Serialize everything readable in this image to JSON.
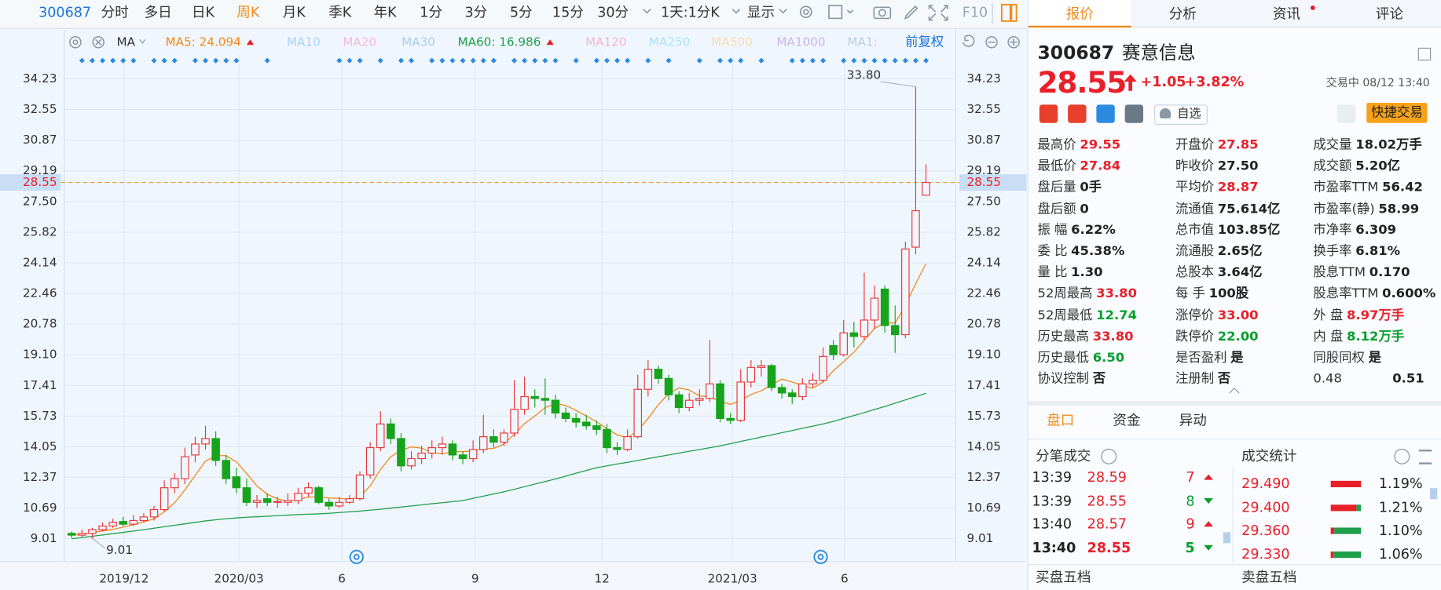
{
  "toolbar": {
    "code": "300687",
    "periods": [
      "分时",
      "多日",
      "日K",
      "周K",
      "月K",
      "季K",
      "年K",
      "1分",
      "3分",
      "5分",
      "15分",
      "30分"
    ],
    "active": "周K",
    "minute_k": "1天:1分K",
    "display": "显示",
    "f10": "F10"
  },
  "ma_legend": {
    "label": "MA",
    "items": [
      {
        "text": "MA5: 24.094",
        "color": "#f0881c"
      },
      {
        "text": "MA10",
        "color": "#a9d3f5"
      },
      {
        "text": "MA20",
        "color": "#f3b8dc"
      },
      {
        "text": "MA30",
        "color": "#a9cdee"
      },
      {
        "text": "MA60: 16.986",
        "color": "#1ea04a"
      },
      {
        "text": "MA120",
        "color": "#f4b4cf"
      },
      {
        "text": "MA250",
        "color": "#a8e4f2"
      },
      {
        "text": "MA500",
        "color": "#f6dcb0"
      },
      {
        "text": "MA1000",
        "color": "#c8b4ec"
      },
      {
        "text": "MA1:",
        "color": "#b8cde2"
      }
    ],
    "adjust": "前复权"
  },
  "chart_data": {
    "type": "candlestick",
    "x_labels": [
      "2019/12",
      "2020/03",
      "6",
      "9",
      "12",
      "2021/03",
      "6"
    ],
    "up_color": "#e8393b",
    "down_color": "#17a31c",
    "candles": [
      [
        9.3,
        9.4,
        9.05,
        9.2
      ],
      [
        9.2,
        9.5,
        9.1,
        9.3
      ],
      [
        9.3,
        9.6,
        9.01,
        9.5
      ],
      [
        9.5,
        9.9,
        9.4,
        9.7
      ],
      [
        9.7,
        10.1,
        9.6,
        9.9
      ],
      [
        9.95,
        10.2,
        9.7,
        9.8
      ],
      [
        9.8,
        10.3,
        9.7,
        10.0
      ],
      [
        10.0,
        10.4,
        9.9,
        10.2
      ],
      [
        10.2,
        10.8,
        10.0,
        10.6
      ],
      [
        10.6,
        12.2,
        10.5,
        11.8
      ],
      [
        11.8,
        12.6,
        11.5,
        12.3
      ],
      [
        12.3,
        14.0,
        12.0,
        13.5
      ],
      [
        13.6,
        14.6,
        13.2,
        14.2
      ],
      [
        14.2,
        15.2,
        13.9,
        14.5
      ],
      [
        14.5,
        14.9,
        13.0,
        13.3
      ],
      [
        13.3,
        13.6,
        12.0,
        12.3
      ],
      [
        12.4,
        12.9,
        11.5,
        11.8
      ],
      [
        11.8,
        12.3,
        10.8,
        11.0
      ],
      [
        11.0,
        11.4,
        10.7,
        11.1
      ],
      [
        11.2,
        11.5,
        10.8,
        11.0
      ],
      [
        11.0,
        11.3,
        10.7,
        11.05
      ],
      [
        11.0,
        11.5,
        10.8,
        11.1
      ],
      [
        11.1,
        11.8,
        10.9,
        11.5
      ],
      [
        11.5,
        12.1,
        11.3,
        11.8
      ],
      [
        11.8,
        11.9,
        10.9,
        11.0
      ],
      [
        11.0,
        11.2,
        10.6,
        10.8
      ],
      [
        10.8,
        11.3,
        10.7,
        11.0
      ],
      [
        11.0,
        11.4,
        10.9,
        11.2
      ],
      [
        11.2,
        12.7,
        11.1,
        12.5
      ],
      [
        12.5,
        14.3,
        12.3,
        14.0
      ],
      [
        14.0,
        16.0,
        13.8,
        15.3
      ],
      [
        15.3,
        15.6,
        14.2,
        14.5
      ],
      [
        14.5,
        14.8,
        12.7,
        13.0
      ],
      [
        13.0,
        13.8,
        12.8,
        13.4
      ],
      [
        13.4,
        14.1,
        13.1,
        13.7
      ],
      [
        13.7,
        14.4,
        13.4,
        14.0
      ],
      [
        14.0,
        14.6,
        13.6,
        14.2
      ],
      [
        14.2,
        14.4,
        13.3,
        13.6
      ],
      [
        13.6,
        13.8,
        13.1,
        13.4
      ],
      [
        13.4,
        14.4,
        13.2,
        13.9
      ],
      [
        13.9,
        15.8,
        13.7,
        14.6
      ],
      [
        14.6,
        15.0,
        14.0,
        14.3
      ],
      [
        14.3,
        15.0,
        14.1,
        14.8
      ],
      [
        14.8,
        17.7,
        14.6,
        16.1
      ],
      [
        16.1,
        17.9,
        15.8,
        16.8
      ],
      [
        16.8,
        17.2,
        16.2,
        16.7
      ],
      [
        16.7,
        17.8,
        15.8,
        16.6
      ],
      [
        16.6,
        16.9,
        15.6,
        15.9
      ],
      [
        15.9,
        16.2,
        15.4,
        15.6
      ],
      [
        15.6,
        15.9,
        15.1,
        15.4
      ],
      [
        15.4,
        15.8,
        15.0,
        15.2
      ],
      [
        15.2,
        15.5,
        14.7,
        15.0
      ],
      [
        15.0,
        15.3,
        13.7,
        14.0
      ],
      [
        14.0,
        14.3,
        13.6,
        13.9
      ],
      [
        13.9,
        15.0,
        13.8,
        14.6
      ],
      [
        14.6,
        18.0,
        14.5,
        17.2
      ],
      [
        17.2,
        18.8,
        16.8,
        18.3
      ],
      [
        18.3,
        18.5,
        17.5,
        17.8
      ],
      [
        17.8,
        18.0,
        16.6,
        16.9
      ],
      [
        16.9,
        17.1,
        15.9,
        16.2
      ],
      [
        16.2,
        17.0,
        16.0,
        16.6
      ],
      [
        16.6,
        17.2,
        16.3,
        16.7
      ],
      [
        16.7,
        19.9,
        16.5,
        17.5
      ],
      [
        17.5,
        17.7,
        15.4,
        15.6
      ],
      [
        15.6,
        15.9,
        15.3,
        15.5
      ],
      [
        15.5,
        18.3,
        15.4,
        17.6
      ],
      [
        17.6,
        18.8,
        17.3,
        18.4
      ],
      [
        18.4,
        18.8,
        17.9,
        18.5
      ],
      [
        18.5,
        18.6,
        17.1,
        17.3
      ],
      [
        17.3,
        17.5,
        16.7,
        17.0
      ],
      [
        17.0,
        17.2,
        16.4,
        16.8
      ],
      [
        16.8,
        17.8,
        16.6,
        17.5
      ],
      [
        17.5,
        18.1,
        17.3,
        17.7
      ],
      [
        17.7,
        19.5,
        17.6,
        19.0
      ],
      [
        19.6,
        19.9,
        18.8,
        19.1
      ],
      [
        19.1,
        21.0,
        19.0,
        20.3
      ],
      [
        20.3,
        20.9,
        19.5,
        20.1
      ],
      [
        20.1,
        23.6,
        19.9,
        21.0
      ],
      [
        21.0,
        22.9,
        20.5,
        22.2
      ],
      [
        22.7,
        22.9,
        20.3,
        20.7
      ],
      [
        20.7,
        21.8,
        19.2,
        20.2
      ],
      [
        20.2,
        25.3,
        20.0,
        24.9
      ],
      [
        25.0,
        33.8,
        24.6,
        27.0
      ],
      [
        27.85,
        29.55,
        27.84,
        28.55
      ]
    ],
    "series": [
      {
        "color": "#f0881c",
        "values": [
          9.2,
          9.25,
          9.33,
          9.43,
          9.52,
          9.64,
          9.78,
          9.92,
          10.1,
          10.48,
          10.98,
          11.68,
          12.48,
          13.26,
          13.56,
          13.56,
          13.22,
          12.58,
          11.9,
          11.44,
          11.19,
          11.05,
          11.15,
          11.29,
          11.29,
          11.24,
          11.22,
          11.16,
          11.3,
          11.9,
          12.8,
          13.5,
          13.86,
          14.04,
          13.98,
          13.72,
          13.66,
          13.78,
          13.78,
          13.82,
          13.94,
          13.96,
          14.2,
          14.74,
          15.32,
          15.74,
          16.2,
          16.42,
          16.32,
          16.04,
          15.74,
          15.42,
          15.04,
          14.7,
          14.54,
          14.94,
          15.6,
          16.36,
          16.96,
          17.28,
          17.16,
          16.84,
          16.78,
          16.52,
          16.38,
          16.58,
          16.92,
          17.12,
          17.46,
          17.76,
          17.6,
          17.42,
          17.26,
          17.6,
          18.22,
          18.72,
          19.24,
          19.9,
          20.54,
          20.86,
          20.84,
          21.8,
          23.0,
          24.094
        ]
      },
      {
        "color": "#1ea04a",
        "values": [
          9.0,
          9.07,
          9.14,
          9.21,
          9.28,
          9.35,
          9.42,
          9.5,
          9.58,
          9.66,
          9.74,
          9.82,
          9.9,
          9.98,
          10.04,
          10.1,
          10.14,
          10.18,
          10.21,
          10.24,
          10.27,
          10.3,
          10.33,
          10.35,
          10.37,
          10.4,
          10.44,
          10.48,
          10.52,
          10.57,
          10.62,
          10.68,
          10.74,
          10.8,
          10.86,
          10.92,
          10.98,
          11.04,
          11.1,
          11.22,
          11.34,
          11.46,
          11.58,
          11.72,
          11.86,
          12.0,
          12.14,
          12.28,
          12.44,
          12.6,
          12.75,
          12.9,
          13.0,
          13.1,
          13.2,
          13.3,
          13.4,
          13.5,
          13.6,
          13.7,
          13.8,
          13.9,
          14.0,
          14.1,
          14.22,
          14.34,
          14.46,
          14.58,
          14.7,
          14.82,
          14.94,
          15.06,
          15.18,
          15.3,
          15.44,
          15.6,
          15.76,
          15.92,
          16.1,
          16.26,
          16.44,
          16.62,
          16.8,
          16.986
        ]
      }
    ],
    "ylim": [
      8.355,
      35.64
    ],
    "yticks": [
      9.01,
      10.69,
      12.37,
      14.05,
      15.73,
      17.41,
      {
        "value": 19.1,
        "label": "19.10"
      },
      20.78,
      22.46,
      24.14,
      25.82,
      {
        "value": 27.5,
        "label": "27.50"
      },
      29.19,
      30.87,
      32.55,
      34.23
    ],
    "last_price": 28.55,
    "high_label": {
      "value": 33.8,
      "label": "33.80"
    },
    "low_label": 9.01,
    "grid": true
  },
  "quote": {
    "tabs": [
      "报价",
      "分析",
      "资讯",
      "评论"
    ],
    "code": "300687",
    "name": "赛意信息",
    "price": "28.55",
    "change": "+1.05",
    "change_pct": "+3.82%",
    "status": "交易中 08/12 13:40",
    "watch": "自选",
    "trade": "快捷交易",
    "stats": [
      [
        {
          "label": "最高价",
          "value": "29.55",
          "color": "#e8202a"
        },
        {
          "label": "最低价",
          "value": "27.84",
          "color": "#e8202a"
        },
        {
          "label": "盘后量",
          "value": "0手",
          "color": "#222"
        },
        {
          "label": "盘后额",
          "value": "0",
          "color": "#222"
        },
        {
          "label": "振 幅",
          "value": "6.22%",
          "color": "#222"
        },
        {
          "label": "委 比",
          "value": "45.38%",
          "color": "#222"
        },
        {
          "label": "量 比",
          "value": "1.30",
          "color": "#222"
        },
        {
          "label": "52周最高",
          "value": "33.80",
          "color": "#e8202a"
        },
        {
          "label": "52周最低",
          "value": "12.74",
          "color": "#0a9e2f"
        },
        {
          "label": "历史最高",
          "value": "33.80",
          "color": "#e8202a"
        },
        {
          "label": "历史最低",
          "value": "6.50",
          "color": "#0a9e2f"
        },
        {
          "label": "协议控制",
          "value": "否",
          "color": "#222"
        }
      ],
      [
        {
          "label": "开盘价",
          "value": "27.85",
          "color": "#e8202a"
        },
        {
          "label": "昨收价",
          "value": "27.50",
          "color": "#222"
        },
        {
          "label": "平均价",
          "value": "28.87",
          "color": "#e8202a"
        },
        {
          "label": "流通值",
          "value": "75.614亿",
          "color": "#222"
        },
        {
          "label": "总市值",
          "value": "103.85亿",
          "color": "#222"
        },
        {
          "label": "流通股",
          "value": "2.65亿",
          "color": "#222"
        },
        {
          "label": "总股本",
          "value": "3.64亿",
          "color": "#222"
        },
        {
          "label": "每 手",
          "value": "100股",
          "color": "#222"
        },
        {
          "label": "涨停价",
          "value": "33.00",
          "color": "#e8202a"
        },
        {
          "label": "跌停价",
          "value": "22.00",
          "color": "#0a9e2f"
        },
        {
          "label": "是否盈利",
          "value": "是",
          "color": "#222"
        },
        {
          "label": "注册制",
          "value": "否",
          "color": "#222"
        }
      ],
      [
        {
          "label": "成交量",
          "value": "18.02万手",
          "color": "#222"
        },
        {
          "label": "成交额",
          "value": "5.20亿",
          "color": "#222"
        },
        {
          "label": "市盈率TTM",
          "value": "56.42",
          "color": "#222"
        },
        {
          "label": "市盈率(静)",
          "value": "58.99",
          "color": "#222"
        },
        {
          "label": "市净率",
          "value": "6.309",
          "color": "#222"
        },
        {
          "label": "换手率",
          "value": "6.81%",
          "color": "#222"
        },
        {
          "label": "股息TTM",
          "value": "0.170",
          "color": "#222"
        },
        {
          "label": "股息率TTM",
          "value": "0.600%",
          "color": "#222"
        },
        {
          "label": "外 盘",
          "value": "8.97万手",
          "color": "#e8202a"
        },
        {
          "label": "内 盘",
          "value": "8.12万手",
          "color": "#0a9e2f"
        },
        {
          "label": "同股同权",
          "value": "是",
          "color": "#222"
        },
        {
          "label": "0.48",
          "value": "0.51",
          "color": "#222"
        }
      ]
    ]
  },
  "panel": {
    "tabs": [
      "盘口",
      "资金",
      "异动"
    ],
    "ticks_title": "分笔成交",
    "trades": [
      {
        "time": "13:39",
        "price": "28.59",
        "volume": "7",
        "side": "up"
      },
      {
        "time": "13:39",
        "price": "28.55",
        "volume": "8",
        "side": "down"
      },
      {
        "time": "13:40",
        "price": "28.57",
        "volume": "9",
        "side": "up"
      },
      {
        "time": "13:40",
        "price": "28.55",
        "volume": "5",
        "side": "down"
      }
    ],
    "stats_title": "成交统计",
    "volume_stats": [
      {
        "price": "29.490",
        "pct": "1.19%"
      },
      {
        "price": "29.400",
        "pct": "1.21%"
      },
      {
        "price": "29.360",
        "pct": "1.10%"
      },
      {
        "price": "29.330",
        "pct": "1.06%"
      }
    ],
    "bid": "买盘五档",
    "ask": "卖盘五档"
  }
}
